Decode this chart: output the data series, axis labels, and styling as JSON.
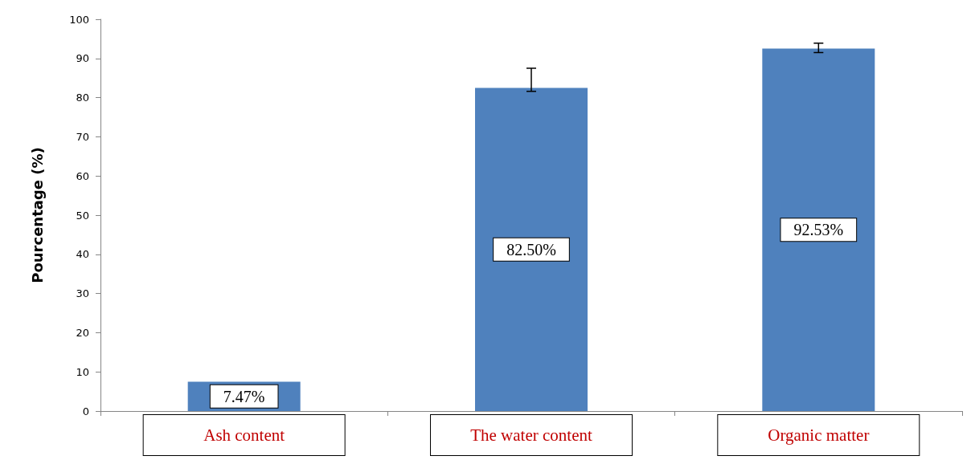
{
  "chart_data": {
    "type": "bar",
    "ylabel": "Pourcentage (%)",
    "categories": [
      "Ash content",
      "The water content",
      "Organic matter"
    ],
    "values": [
      7.47,
      82.5,
      92.53
    ],
    "value_labels": [
      "7.47%",
      "82.50%",
      "92.53%"
    ],
    "errors": [
      null,
      [
        81.6,
        87.5
      ],
      [
        91.5,
        93.9
      ]
    ],
    "color": "#4f81bd",
    "ylim": [
      0,
      100
    ],
    "yticks": [
      0,
      10,
      20,
      30,
      40,
      50,
      60,
      70,
      80,
      90,
      100
    ],
    "grid": false
  }
}
